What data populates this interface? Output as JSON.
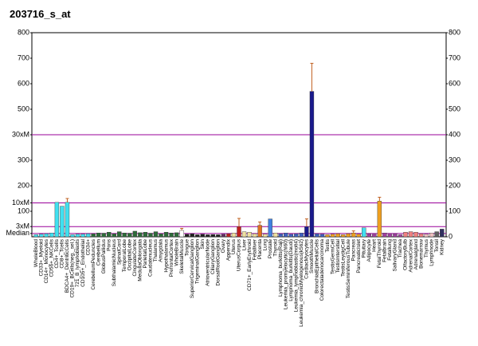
{
  "chart_data": {
    "type": "bar",
    "title": "203716_s_at",
    "categories": [
      "WholeBlood",
      "CD33+_Myeloid",
      "CD14+_Monocytes",
      "CD56+_NKCells",
      "CD4+_Tcells",
      "CD8+_Tcells",
      "BDCA4+_DentriticCells",
      "CD19+_BCells(neg._sel.)",
      "721_B_lymphoblasts",
      "CD105+_Endothelial",
      "CD34+",
      "CerebellumPeduncles",
      "Cerebellum",
      "GlobusPallidus",
      "Pons",
      "SubthalamicNucleus",
      "SpinalCord",
      "TemporalLobe",
      "OccipitalLobe",
      "CingulateCortex",
      "MedullaOblongata",
      "ParietalLobe",
      "Caudatenucleus",
      "Thalamus",
      "Amygdala",
      "Hypothalamus",
      "PrefrontalCortex",
      "WholeBrain",
      "SkeletalMuscle",
      "Tongue",
      "SuperiorCervicalGanglion",
      "TrigeminalGanglion",
      "Skin",
      "AtrioventricularNode",
      "CiliaryGanglion",
      "DorsalRootGanglion",
      "Ovary",
      "Appendix",
      "Uterus",
      "UterusCorpus",
      "Liver",
      "CD71+_EarlyErythroid",
      "Fetalliver",
      "Placenta",
      "Lung",
      "Prostate",
      "Thyroid",
      "Lymphoma_burkitts(Raji)",
      "Leukemia_promyelocytic(hl60)",
      "Lymphoma_burkitts(Daudi)",
      "Leukemia_lymphoblastic(molt4)",
      "Leukemia_chronicMyelogenous(k562)",
      "CardiacMyocytes",
      "SmoothMuscle",
      "BronchialEpithelialCells",
      "Colorectaladenocarcinoma",
      "Testis",
      "TestisGermCell",
      "TestisIntersitial",
      "TestisLeydigCell",
      "TestisSeminiferousTubule",
      "Pancreas",
      "PancreaticIslet",
      "Pituitary",
      "Adipocyte",
      "Heart",
      "FetalThyroid",
      "Fetalbrain",
      "Fetallung",
      "SalivaryGland",
      "Trachea",
      "OlfactoryBulb",
      "AdrenalCortex",
      "Adrenalgland",
      "Bonemarrow",
      "Thymus",
      "Lymphnode",
      "Tonsil",
      "Kidney"
    ],
    "values": [
      8,
      10,
      12,
      15,
      135,
      120,
      135,
      8,
      10,
      10,
      12,
      12,
      15,
      14,
      18,
      12,
      20,
      15,
      14,
      22,
      16,
      18,
      14,
      20,
      12,
      18,
      15,
      16,
      25,
      10,
      12,
      8,
      10,
      8,
      9,
      8,
      10,
      12,
      15,
      40,
      20,
      18,
      12,
      45,
      10,
      70,
      15,
      12,
      15,
      10,
      12,
      15,
      40,
      570,
      12,
      10,
      8,
      10,
      12,
      8,
      12,
      15,
      10,
      35,
      12,
      10,
      140,
      15,
      10,
      12,
      8,
      18,
      20,
      18,
      12,
      10,
      15,
      20,
      30
    ],
    "errors": [
      null,
      null,
      null,
      null,
      null,
      null,
      15,
      null,
      null,
      null,
      null,
      null,
      null,
      null,
      null,
      null,
      null,
      null,
      null,
      null,
      null,
      null,
      null,
      null,
      null,
      null,
      null,
      null,
      8,
      null,
      null,
      null,
      null,
      null,
      null,
      null,
      null,
      null,
      null,
      32,
      null,
      null,
      null,
      13,
      null,
      null,
      null,
      null,
      null,
      null,
      null,
      null,
      30,
      110,
      null,
      null,
      null,
      null,
      null,
      null,
      null,
      8,
      null,
      null,
      null,
      null,
      15,
      null,
      null,
      null,
      null,
      null,
      null,
      null,
      null,
      null,
      null,
      null,
      null
    ],
    "colors": [
      "#40e0f0",
      "#40e0f0",
      "#40e0f0",
      "#40e0f0",
      "#40e0f0",
      "#40e0f0",
      "#40e0f0",
      "#40e0f0",
      "#40e0f0",
      "#40e0f0",
      "#40e0f0",
      "#2e6b3a",
      "#2e6b3a",
      "#2e6b3a",
      "#2e6b3a",
      "#2e6b3a",
      "#2e6b3a",
      "#2e6b3a",
      "#2e6b3a",
      "#2e6b3a",
      "#2e6b3a",
      "#2e6b3a",
      "#2e6b3a",
      "#2e6b3a",
      "#2e6b3a",
      "#2e6b3a",
      "#2e6b3a",
      "#2e6b3a",
      "#ffffff",
      "#202020",
      "#202020",
      "#202020",
      "#202020",
      "#202020",
      "#202020",
      "#202020",
      "#603060",
      "#c02020",
      "#f0e0a0",
      "#c02020",
      "#f0e0a0",
      "#f0e0a0",
      "#f0e0a0",
      "#e07020",
      "#f0e0a0",
      "#4080e0",
      "#f0e0a0",
      "#4060c0",
      "#4060c0",
      "#4060c0",
      "#4060c0",
      "#4060c0",
      "#1a1a8c",
      "#1a1a8c",
      "#4060c0",
      "#4060c0",
      "#f0a020",
      "#f0a020",
      "#f0a020",
      "#f0a020",
      "#f0a020",
      "#f0a020",
      "#f0a020",
      "#40e0f0",
      "#a040a0",
      "#a040a0",
      "#f0a020",
      "#a040a0",
      "#a040a0",
      "#a040a0",
      "#a040a0",
      "#f08080",
      "#f08080",
      "#f08080",
      "#f08080",
      "#f0c0c0",
      "#f0c0c0",
      "#606060",
      "#303060"
    ],
    "error_color": "#c06020",
    "ylim": [
      0,
      800
    ],
    "yticks": [
      800,
      700,
      600,
      500,
      {
        "value": 400,
        "label": "30xM"
      },
      300,
      200,
      {
        "value": 133,
        "label": "10xM"
      },
      100,
      {
        "value": 40,
        "label": "3xM"
      },
      {
        "value": 13,
        "label": "Median"
      }
    ],
    "y2lim": [
      0,
      800
    ],
    "y2ticks": [
      800,
      700,
      600,
      500,
      400,
      300,
      200,
      100,
      0
    ],
    "mark_color": "#990099"
  }
}
